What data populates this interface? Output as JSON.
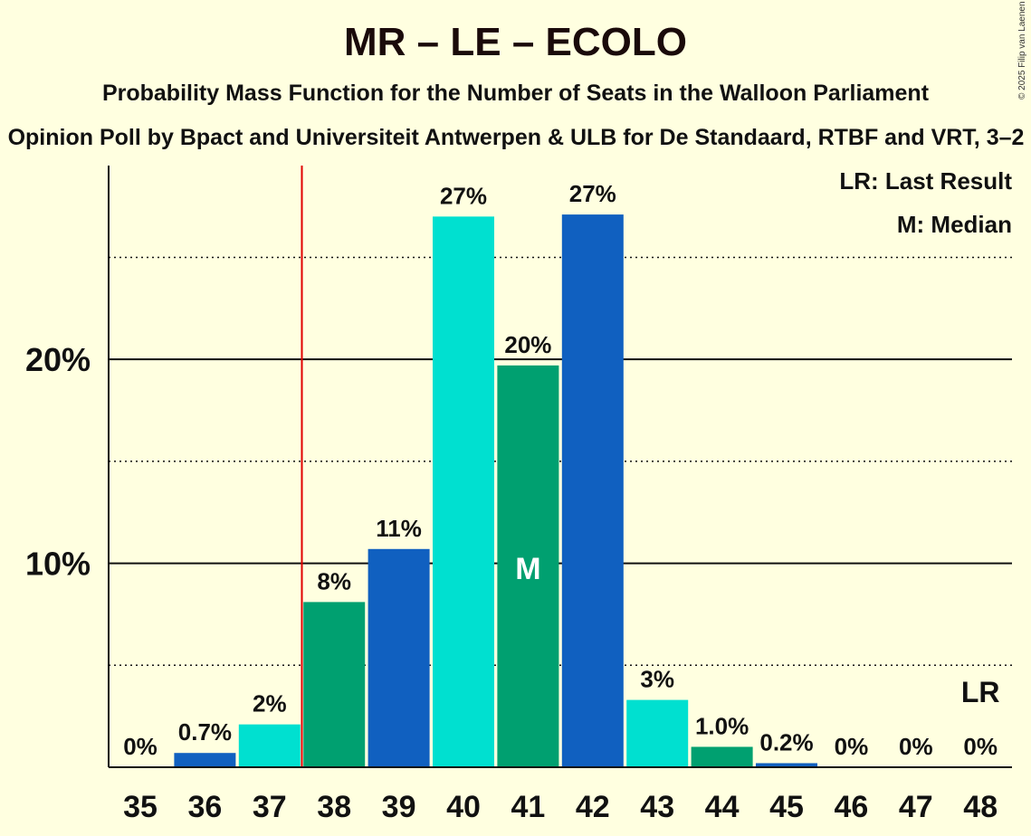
{
  "title": "MR – LE – ECOLO",
  "subtitle": "Probability Mass Function for the Number of Seats in the Walloon Parliament",
  "source": "Opinion Poll by Bpact and Universiteit Antwerpen & ULB for De Standaard, RTBF and VRT, 3–2",
  "copyright": "© 2025 Filip van Laenen",
  "legend": {
    "last_result": "LR: Last Result",
    "median": "M: Median"
  },
  "colors": {
    "background": "#FFFFE0",
    "blue": "#1060C0",
    "cyan": "#00E0D0",
    "green": "#00A070",
    "last_result_line": "#E00000"
  },
  "chart_data": {
    "type": "bar",
    "title": "MR – LE – ECOLO",
    "xlabel": "",
    "ylabel": "",
    "categories": [
      "35",
      "36",
      "37",
      "38",
      "39",
      "40",
      "41",
      "42",
      "43",
      "44",
      "45",
      "46",
      "47",
      "48"
    ],
    "values": [
      0.0,
      0.7,
      2.1,
      8.1,
      10.7,
      27.0,
      19.7,
      27.1,
      3.3,
      1.0,
      0.2,
      0.0,
      0.0,
      0.0
    ],
    "labels": [
      "0%",
      "0.7%",
      "2%",
      "8%",
      "11%",
      "27%",
      "20%",
      "27%",
      "3%",
      "1.0%",
      "0.2%",
      "0%",
      "0%",
      "0%"
    ],
    "bar_colors": [
      "cyan",
      "blue",
      "cyan",
      "green",
      "blue",
      "cyan",
      "green",
      "blue",
      "cyan",
      "green",
      "blue",
      "cyan",
      "green",
      "blue"
    ],
    "ylim": [
      0,
      29.5
    ],
    "y_major_ticks": [
      10,
      20
    ],
    "y_major_tick_labels": [
      "10%",
      "20%"
    ],
    "y_minor_gridlines": [
      5,
      15,
      25
    ],
    "median_seat": "41",
    "median_marker": "M",
    "last_result_seat": "48",
    "last_result_marker": "LR",
    "majority_line_between": [
      "37",
      "38"
    ]
  }
}
